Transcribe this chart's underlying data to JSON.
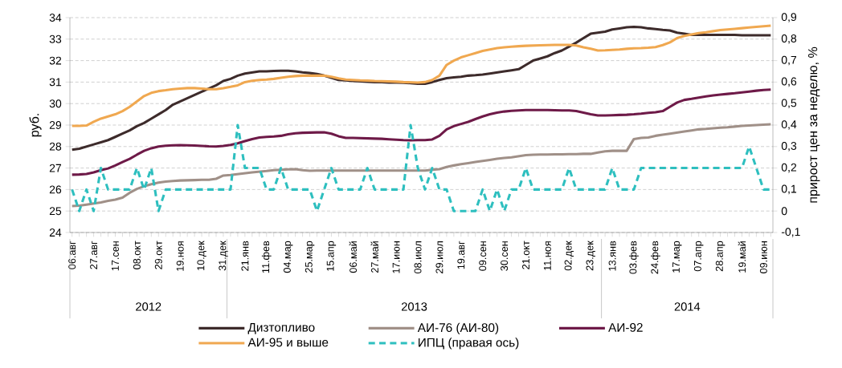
{
  "chart_data": {
    "type": "line",
    "ylabel": "руб.",
    "y2label": "прирост цен за неделю, %",
    "categories": [
      "06.авг",
      null,
      null,
      "27.авг",
      null,
      null,
      "17.сен",
      null,
      null,
      "08.окт",
      null,
      null,
      "29.окт",
      null,
      null,
      "19.ноя",
      null,
      null,
      "10.дек",
      null,
      null,
      "31.дек",
      null,
      null,
      "21.янв",
      null,
      null,
      "11.фев",
      null,
      null,
      "04.мар",
      null,
      null,
      "25.мар",
      null,
      null,
      "15.апр",
      null,
      null,
      "06.май",
      null,
      null,
      "27.май",
      null,
      null,
      "17.июн",
      null,
      null,
      "08.июл",
      null,
      null,
      "29.июл",
      null,
      null,
      "19.авг",
      null,
      null,
      "09.сен",
      null,
      null,
      "30.сен",
      null,
      null,
      "21.окт",
      null,
      null,
      "11.ноя",
      null,
      null,
      "02.дек",
      null,
      null,
      "23.дек",
      null,
      null,
      "13.янв",
      null,
      null,
      "03.фев",
      null,
      null,
      "24.фев",
      null,
      null,
      "17.мар",
      null,
      null,
      "07.апр",
      null,
      null,
      "28.апр",
      null,
      null,
      "19.май",
      null,
      null,
      "09.июн",
      null
    ],
    "annotations": [
      "2012",
      "2013",
      "2014"
    ],
    "ylim": [
      24,
      34
    ],
    "yticks": [
      24,
      25,
      26,
      27,
      28,
      29,
      30,
      31,
      32,
      33,
      34
    ],
    "y2lim": [
      -0.1,
      0.9
    ],
    "y2ticks": [
      {
        "value": -0.1,
        "label": "-0,1"
      },
      0,
      {
        "value": 0.1,
        "label": "0,1"
      },
      {
        "value": 0.2,
        "label": "0,2"
      },
      {
        "value": 0.3,
        "label": "0,3"
      },
      {
        "value": 0.4,
        "label": "0,4"
      },
      {
        "value": 0.5,
        "label": "0,5"
      },
      {
        "value": 0.6,
        "label": "0,6"
      },
      {
        "value": 0.7,
        "label": "0,7"
      },
      {
        "value": 0.8,
        "label": "0,8"
      },
      {
        "value": 0.9,
        "label": "0,9"
      }
    ],
    "grid": "y",
    "legend": "bottom",
    "series": [
      {
        "name": "Дизтопливо",
        "color": "#3d2b2b",
        "values": [
          27.85,
          27.9,
          28.0,
          28.1,
          28.2,
          28.3,
          28.45,
          28.6,
          28.75,
          28.95,
          29.1,
          29.3,
          29.5,
          29.7,
          29.95,
          30.1,
          30.25,
          30.4,
          30.55,
          30.7,
          30.85,
          31.05,
          31.15,
          31.3,
          31.4,
          31.45,
          31.5,
          31.5,
          31.52,
          31.53,
          31.53,
          31.5,
          31.45,
          31.42,
          31.38,
          31.3,
          31.2,
          31.1,
          31.08,
          31.05,
          31.03,
          31.02,
          31.0,
          31.0,
          30.98,
          30.98,
          30.97,
          30.95,
          30.92,
          30.92,
          31.0,
          31.1,
          31.18,
          31.22,
          31.25,
          31.3,
          31.32,
          31.35,
          31.4,
          31.45,
          31.5,
          31.55,
          31.6,
          31.8,
          32.0,
          32.1,
          32.2,
          32.35,
          32.47,
          32.65,
          32.84,
          33.05,
          33.25,
          33.3,
          33.35,
          33.45,
          33.5,
          33.55,
          33.57,
          33.55,
          33.5,
          33.47,
          33.43,
          33.4,
          33.3,
          33.25,
          33.2,
          33.2,
          33.2,
          33.2,
          33.2,
          33.2,
          33.2,
          33.18,
          33.18,
          33.18,
          33.18,
          33.18
        ]
      },
      {
        "name": "АИ-76 (АИ-80)",
        "color": "#a09088",
        "values": [
          25.23,
          25.25,
          25.3,
          25.35,
          25.4,
          25.47,
          25.53,
          25.62,
          25.85,
          26.03,
          26.15,
          26.25,
          26.32,
          26.37,
          26.4,
          26.42,
          26.43,
          26.44,
          26.45,
          26.45,
          26.5,
          26.65,
          26.68,
          26.72,
          26.76,
          26.8,
          26.83,
          26.86,
          26.9,
          26.92,
          26.94,
          26.95,
          26.9,
          26.87,
          26.88,
          26.88,
          26.88,
          26.88,
          26.88,
          26.88,
          26.88,
          26.88,
          26.88,
          26.88,
          26.88,
          26.88,
          26.88,
          26.88,
          26.88,
          26.88,
          26.92,
          26.95,
          27.05,
          27.12,
          27.18,
          27.23,
          27.28,
          27.33,
          27.38,
          27.43,
          27.47,
          27.5,
          27.55,
          27.6,
          27.62,
          27.63,
          27.63,
          27.64,
          27.64,
          27.65,
          27.65,
          27.66,
          27.66,
          27.72,
          27.78,
          27.8,
          27.8,
          27.8,
          28.35,
          28.4,
          28.42,
          28.5,
          28.55,
          28.6,
          28.65,
          28.7,
          28.75,
          28.8,
          28.82,
          28.85,
          28.88,
          28.9,
          28.93,
          28.96,
          28.98,
          29.0,
          29.02,
          29.04
        ]
      },
      {
        "name": "АИ-92",
        "color": "#6e1a48",
        "values": [
          26.69,
          26.7,
          26.72,
          26.8,
          26.9,
          26.98,
          27.12,
          27.28,
          27.43,
          27.62,
          27.8,
          27.92,
          28.0,
          28.04,
          28.06,
          28.07,
          28.06,
          28.05,
          28.03,
          28.01,
          28.0,
          28.03,
          28.08,
          28.15,
          28.25,
          28.35,
          28.42,
          28.45,
          28.47,
          28.5,
          28.57,
          28.62,
          28.64,
          28.65,
          28.66,
          28.66,
          28.6,
          28.48,
          28.4,
          28.4,
          28.39,
          28.38,
          28.37,
          28.36,
          28.34,
          28.32,
          28.3,
          28.29,
          28.3,
          28.3,
          28.33,
          28.5,
          28.8,
          28.95,
          29.05,
          29.15,
          29.28,
          29.4,
          29.5,
          29.58,
          29.63,
          29.66,
          29.68,
          29.7,
          29.7,
          29.7,
          29.7,
          29.69,
          29.68,
          29.68,
          29.65,
          29.58,
          29.5,
          29.45,
          29.45,
          29.46,
          29.47,
          29.48,
          29.5,
          29.53,
          29.57,
          29.6,
          29.65,
          29.85,
          30.05,
          30.17,
          30.22,
          30.28,
          30.33,
          30.38,
          30.42,
          30.45,
          30.48,
          30.52,
          30.56,
          30.6,
          30.63,
          30.65
        ]
      },
      {
        "name": "АИ-95 и выше",
        "color": "#f0a850",
        "values": [
          28.96,
          28.96,
          28.98,
          29.15,
          29.3,
          29.4,
          29.5,
          29.65,
          29.85,
          30.1,
          30.35,
          30.5,
          30.58,
          30.62,
          30.67,
          30.7,
          30.72,
          30.72,
          30.7,
          30.67,
          30.67,
          30.72,
          30.78,
          30.85,
          31.0,
          31.06,
          31.1,
          31.12,
          31.15,
          31.2,
          31.25,
          31.28,
          31.3,
          31.3,
          31.3,
          31.3,
          31.25,
          31.17,
          31.12,
          31.1,
          31.08,
          31.07,
          31.05,
          31.04,
          31.03,
          31.02,
          31.0,
          30.99,
          30.98,
          31.0,
          31.1,
          31.3,
          31.8,
          32.0,
          32.15,
          32.25,
          32.35,
          32.45,
          32.52,
          32.58,
          32.62,
          32.65,
          32.67,
          32.69,
          32.7,
          32.71,
          32.72,
          32.73,
          32.73,
          32.73,
          32.7,
          32.62,
          32.55,
          32.47,
          32.48,
          32.5,
          32.52,
          32.55,
          32.57,
          32.58,
          32.6,
          32.63,
          32.72,
          32.85,
          33.05,
          33.15,
          33.22,
          33.28,
          33.32,
          33.37,
          33.42,
          33.45,
          33.48,
          33.51,
          33.54,
          33.57,
          33.6,
          33.63
        ]
      },
      {
        "name": "ИПЦ (правая ось)",
        "color": "#2ebfbf",
        "axis": "y2",
        "line_style": "dashed",
        "values": [
          0.1,
          0,
          0.1,
          0,
          0.2,
          0.1,
          0.1,
          0.1,
          0.1,
          0.2,
          0.1,
          0.2,
          0,
          0.1,
          0.1,
          0.1,
          0.1,
          0.1,
          0.1,
          0.1,
          0.1,
          0.1,
          0.1,
          0.4,
          0.2,
          0.2,
          0.2,
          0.1,
          0.1,
          0.2,
          0.1,
          0.1,
          0.1,
          0.1,
          0,
          0.1,
          0.2,
          0.1,
          0.1,
          0.1,
          0.1,
          0.2,
          0.1,
          0.1,
          0.1,
          0.1,
          0.1,
          0.4,
          0.2,
          0.1,
          0.2,
          0.1,
          0.1,
          0,
          0,
          0,
          0,
          0.1,
          0,
          0.1,
          0,
          0.1,
          0.1,
          0.2,
          0.1,
          0.1,
          0.1,
          0.1,
          0.1,
          0.2,
          0.1,
          0.1,
          0.1,
          0.1,
          0.1,
          0.2,
          0.1,
          0.1,
          0.1,
          0.2,
          0.2,
          0.2,
          0.2,
          0.2,
          0.2,
          0.2,
          0.2,
          0.2,
          0.2,
          0.2,
          0.2,
          0.2,
          0.2,
          0.2,
          0.3,
          0.2,
          0.1,
          0.1
        ]
      }
    ]
  }
}
